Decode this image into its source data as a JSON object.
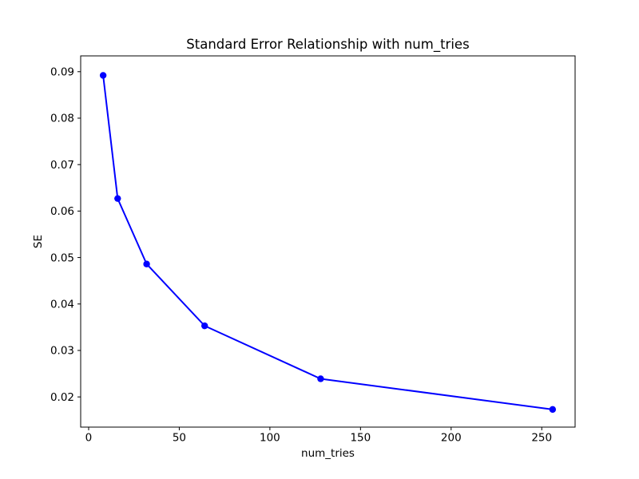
{
  "chart_data": {
    "type": "line",
    "title": "Standard Error Relationship with num_tries",
    "xlabel": "num_tries",
    "ylabel": "SE",
    "x": [
      8,
      16,
      32,
      64,
      128,
      256
    ],
    "y": [
      0.0892,
      0.0627,
      0.0486,
      0.0353,
      0.0239,
      0.0173
    ],
    "xticks": [
      0,
      50,
      100,
      150,
      200,
      250
    ],
    "xtick_labels": [
      "0",
      "50",
      "100",
      "150",
      "200",
      "250"
    ],
    "yticks": [
      0.02,
      0.03,
      0.04,
      0.05,
      0.06,
      0.07,
      0.08,
      0.09
    ],
    "ytick_labels": [
      "0.02",
      "0.03",
      "0.04",
      "0.05",
      "0.06",
      "0.07",
      "0.08",
      "0.09"
    ],
    "xlim": [
      -4.4,
      268.4
    ],
    "ylim": [
      0.0135,
      0.0934
    ],
    "line_color": "#0000ff",
    "marker": "circle",
    "grid": false,
    "legend": null,
    "background_color": "#ffffff",
    "spine_color": "#000000"
  }
}
